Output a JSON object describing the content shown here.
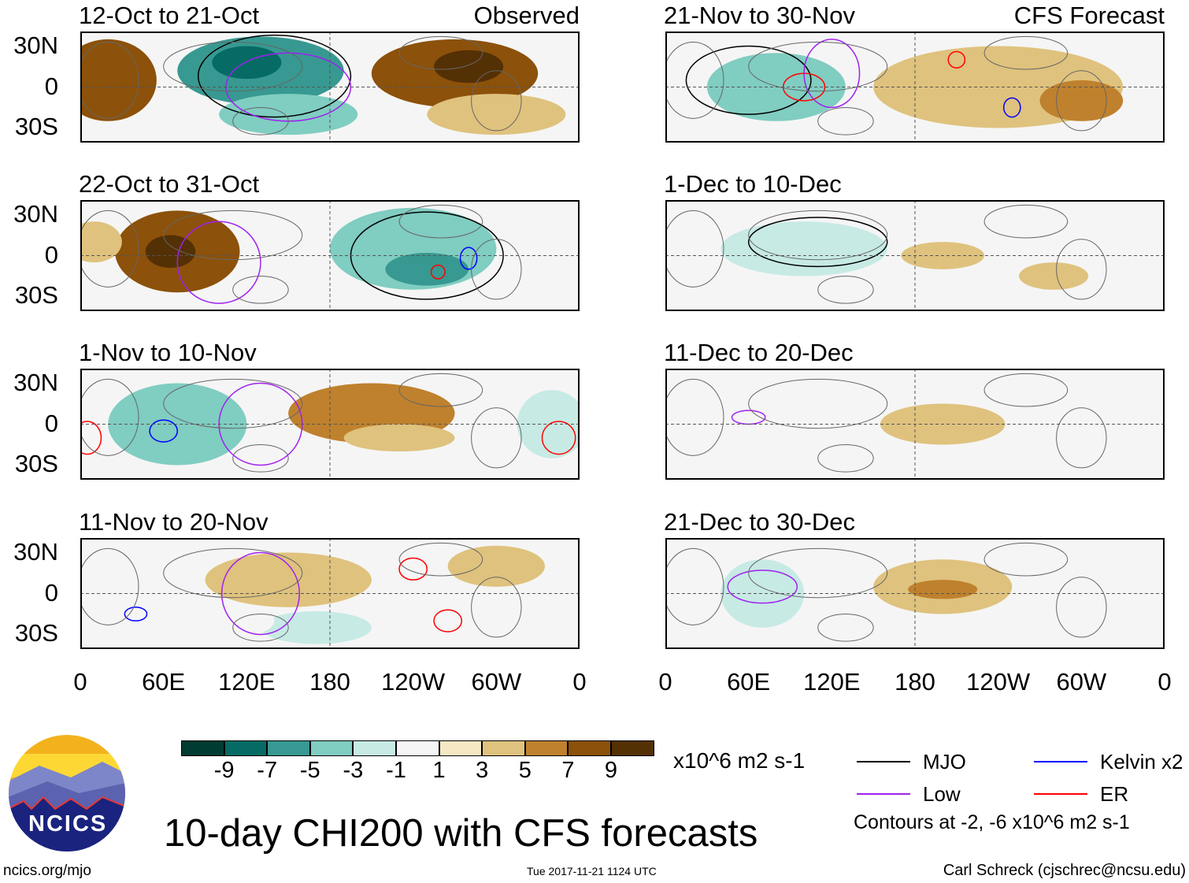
{
  "panels": [
    {
      "col": 0,
      "row": 0,
      "title": "12-Oct to 21-Oct",
      "tag": "Observed",
      "anoms": [
        [
          20,
          5,
          35,
          30,
          7
        ],
        [
          270,
          10,
          60,
          25,
          7
        ],
        [
          280,
          15,
          25,
          12,
          9
        ],
        [
          130,
          12,
          60,
          25,
          -7
        ],
        [
          120,
          18,
          25,
          12,
          -9
        ],
        [
          150,
          -20,
          50,
          15,
          -5
        ],
        [
          300,
          -20,
          50,
          15,
          3
        ]
      ],
      "contours": [
        [
          140,
          8,
          55,
          30,
          "mjo"
        ],
        [
          150,
          0,
          45,
          25,
          "low"
        ]
      ]
    },
    {
      "col": 0,
      "row": 1,
      "title": "22-Oct to 31-Oct",
      "tag": "",
      "anoms": [
        [
          70,
          3,
          45,
          30,
          7
        ],
        [
          65,
          3,
          18,
          12,
          9
        ],
        [
          240,
          5,
          60,
          30,
          -5
        ],
        [
          250,
          -10,
          30,
          12,
          -7
        ],
        [
          10,
          10,
          20,
          15,
          3
        ]
      ],
      "contours": [
        [
          250,
          0,
          55,
          32,
          "mjo"
        ],
        [
          100,
          -5,
          30,
          30,
          "low"
        ],
        [
          280,
          -2,
          6,
          8,
          "kelvin"
        ],
        [
          258,
          -12,
          5,
          5,
          "er"
        ]
      ]
    },
    {
      "col": 0,
      "row": 2,
      "title": "1-Nov to 10-Nov",
      "tag": "",
      "anoms": [
        [
          70,
          0,
          50,
          30,
          -5
        ],
        [
          210,
          8,
          60,
          22,
          5
        ],
        [
          230,
          -10,
          40,
          10,
          3
        ],
        [
          340,
          0,
          25,
          25,
          -3
        ]
      ],
      "contours": [
        [
          130,
          0,
          30,
          30,
          "low"
        ],
        [
          60,
          -5,
          10,
          8,
          "kelvin"
        ],
        [
          5,
          -10,
          10,
          12,
          "er"
        ],
        [
          345,
          -10,
          12,
          12,
          "er"
        ]
      ]
    },
    {
      "col": 0,
      "row": 3,
      "title": "11-Nov to 20-Nov",
      "tag": "",
      "anoms": [
        [
          150,
          10,
          60,
          20,
          3
        ],
        [
          170,
          -25,
          40,
          12,
          -3
        ],
        [
          110,
          -20,
          30,
          12,
          -1
        ],
        [
          300,
          20,
          35,
          15,
          3
        ]
      ],
      "contours": [
        [
          130,
          0,
          28,
          30,
          "low"
        ],
        [
          240,
          18,
          10,
          8,
          "er"
        ],
        [
          265,
          -20,
          10,
          8,
          "er"
        ],
        [
          40,
          -15,
          8,
          5,
          "kelvin"
        ]
      ]
    },
    {
      "col": 1,
      "row": 0,
      "title": "21-Nov to 30-Nov",
      "tag": "CFS Forecast",
      "anoms": [
        [
          80,
          0,
          50,
          25,
          -5
        ],
        [
          240,
          0,
          90,
          30,
          3
        ],
        [
          300,
          -10,
          30,
          15,
          5
        ]
      ],
      "contours": [
        [
          60,
          5,
          45,
          25,
          "mjo"
        ],
        [
          100,
          0,
          15,
          10,
          "er"
        ],
        [
          120,
          10,
          20,
          25,
          "low"
        ],
        [
          210,
          20,
          6,
          6,
          "er"
        ],
        [
          250,
          -15,
          6,
          7,
          "kelvin"
        ]
      ]
    },
    {
      "col": 1,
      "row": 1,
      "title": "1-Dec to 10-Dec",
      "tag": "",
      "anoms": [
        [
          100,
          5,
          60,
          20,
          -3
        ],
        [
          200,
          0,
          30,
          10,
          3
        ],
        [
          280,
          -15,
          25,
          10,
          3
        ]
      ],
      "contours": [
        [
          110,
          10,
          50,
          18,
          "mjo"
        ]
      ]
    },
    {
      "col": 1,
      "row": 2,
      "title": "11-Dec to 20-Dec",
      "tag": "",
      "anoms": [
        [
          200,
          0,
          45,
          15,
          3
        ],
        [
          80,
          -10,
          25,
          10,
          -1
        ]
      ],
      "contours": [
        [
          60,
          5,
          12,
          5,
          "low"
        ]
      ]
    },
    {
      "col": 1,
      "row": 3,
      "title": "21-Dec to 30-Dec",
      "tag": "",
      "anoms": [
        [
          200,
          5,
          50,
          20,
          3
        ],
        [
          200,
          3,
          25,
          7,
          5
        ],
        [
          70,
          0,
          30,
          25,
          -3
        ]
      ],
      "contours": [
        [
          70,
          5,
          25,
          12,
          "low"
        ]
      ]
    }
  ],
  "lat_labels": [
    "30N",
    "0",
    "30S"
  ],
  "lon_labels": [
    "0",
    "60E",
    "120E",
    "180",
    "120W",
    "60W",
    "0"
  ],
  "colorbar": {
    "colors": [
      "#013c32",
      "#056b64",
      "#379991",
      "#80cdc1",
      "#c7eae5",
      "#f5f5f5",
      "#f6e8c3",
      "#dfc27d",
      "#bf812d",
      "#8c510a",
      "#543005"
    ],
    "labels": [
      "-9",
      "-7",
      "-5",
      "-3",
      "-1",
      "1",
      "3",
      "5",
      "7",
      "9"
    ],
    "units": "x10^6 m2 s-1"
  },
  "legend": {
    "items": [
      {
        "label": "MJO",
        "color": "#000000"
      },
      {
        "label": "Kelvin x2",
        "color": "#0000ff"
      },
      {
        "label": "Low",
        "color": "#a020f0"
      },
      {
        "label": "ER",
        "color": "#ff0000"
      }
    ],
    "note": "Contours at -2, -6 x10^6 m2 s-1"
  },
  "title": "10-day CHI200 with CFS forecasts",
  "logo": "NCICS",
  "footer": {
    "left": "ncics.org/mjo",
    "center": "Tue 2017-11-21 1124 UTC",
    "right": "Carl Schreck (cjschrec@ncsu.edu)"
  }
}
